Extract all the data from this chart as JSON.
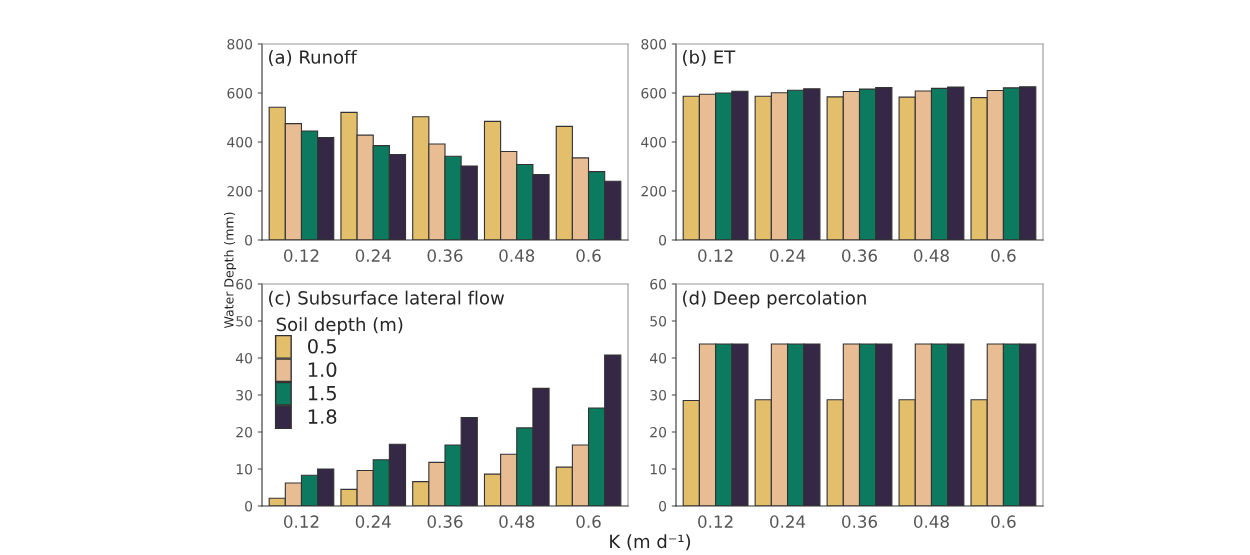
{
  "chart_data": [
    {
      "type": "bar",
      "title": "(a) Runoff",
      "ylabel": "Water Depth (mm)",
      "categories": [
        "0.12",
        "0.24",
        "0.36",
        "0.48",
        "0.6"
      ],
      "ylim": [
        0,
        800
      ],
      "yticks": [
        0,
        200,
        400,
        600,
        800
      ],
      "grid": false,
      "series": [
        {
          "color": "#e3bf6b",
          "values": [
            542,
            521,
            503,
            484,
            464
          ]
        },
        {
          "color": "#e9bd94",
          "values": [
            475,
            428,
            392,
            361,
            335
          ]
        },
        {
          "color": "#0b7a5e",
          "values": [
            445,
            385,
            342,
            308,
            279
          ]
        },
        {
          "color": "#342846",
          "values": [
            418,
            349,
            302,
            267,
            240
          ]
        }
      ]
    },
    {
      "type": "bar",
      "title": "(b) ET",
      "categories": [
        "0.12",
        "0.24",
        "0.36",
        "0.48",
        "0.6"
      ],
      "ylim": [
        0,
        800
      ],
      "yticks": [
        0,
        200,
        400,
        600,
        800
      ],
      "grid": false,
      "series": [
        {
          "color": "#e3bf6b",
          "values": [
            587,
            587,
            584,
            583,
            581
          ]
        },
        {
          "color": "#e9bd94",
          "values": [
            595,
            601,
            606,
            608,
            610
          ]
        },
        {
          "color": "#0b7a5e",
          "values": [
            600,
            611,
            616,
            619,
            621
          ]
        },
        {
          "color": "#342846",
          "values": [
            607,
            617,
            622,
            624,
            625
          ]
        }
      ]
    },
    {
      "type": "bar",
      "title": "(c) Subsurface lateral flow",
      "xlabel": "K (m d⁻¹)",
      "legend_title": "Soil depth (m)",
      "legend": "left",
      "categories": [
        "0.12",
        "0.24",
        "0.36",
        "0.48",
        "0.6"
      ],
      "ylim": [
        0,
        60
      ],
      "yticks": [
        0,
        10,
        20,
        30,
        40,
        50,
        60
      ],
      "grid": false,
      "series": [
        {
          "name": "0.5",
          "color": "#e3bf6b",
          "values": [
            2.1,
            4.5,
            6.6,
            8.6,
            10.5
          ]
        },
        {
          "name": "1.0",
          "color": "#e9bd94",
          "values": [
            6.2,
            9.6,
            11.8,
            14.0,
            16.5
          ]
        },
        {
          "name": "1.5",
          "color": "#0b7a5e",
          "values": [
            8.3,
            12.5,
            16.5,
            21.1,
            26.5
          ]
        },
        {
          "name": "1.8",
          "color": "#342846",
          "values": [
            10.0,
            16.7,
            23.9,
            31.8,
            40.8
          ]
        }
      ]
    },
    {
      "type": "bar",
      "title": "(d) Deep percolation",
      "categories": [
        "0.12",
        "0.24",
        "0.36",
        "0.48",
        "0.6"
      ],
      "ylim": [
        0,
        60
      ],
      "yticks": [
        0,
        10,
        20,
        30,
        40,
        50,
        60
      ],
      "grid": false,
      "series": [
        {
          "color": "#e3bf6b",
          "values": [
            28.5,
            28.7,
            28.7,
            28.7,
            28.7
          ]
        },
        {
          "color": "#e9bd94",
          "values": [
            43.8,
            43.8,
            43.8,
            43.8,
            43.8
          ]
        },
        {
          "color": "#0b7a5e",
          "values": [
            43.8,
            43.8,
            43.8,
            43.8,
            43.8
          ]
        },
        {
          "color": "#342846",
          "values": [
            43.8,
            43.8,
            43.8,
            43.8,
            43.8
          ]
        }
      ]
    }
  ]
}
